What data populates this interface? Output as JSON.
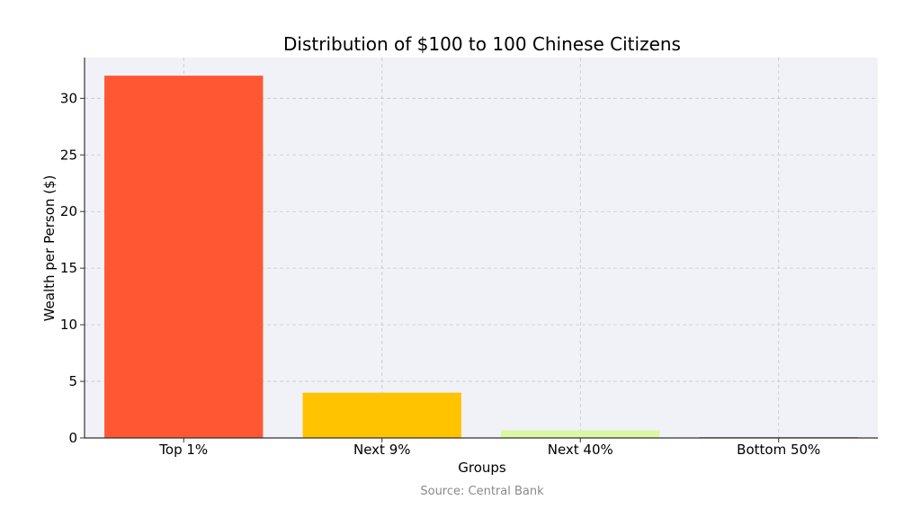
{
  "chart_data": {
    "type": "bar",
    "title": "Distribution of $100 to 100 Chinese Citizens",
    "xlabel": "Groups",
    "ylabel": "Wealth per Person ($)",
    "categories": [
      "Top 1%",
      "Next 9%",
      "Next 40%",
      "Bottom 50%"
    ],
    "values": [
      32,
      4,
      0.68,
      0.06
    ],
    "colors": [
      "#ff5733",
      "#ffc300",
      "#daf7a6",
      "#c70039"
    ],
    "ylim": [
      0,
      33.6
    ],
    "yticks": [
      0,
      5,
      10,
      15,
      20,
      25,
      30
    ],
    "grid": true,
    "plot_background": "#f1f2f7",
    "source": "Source: Central Bank"
  }
}
